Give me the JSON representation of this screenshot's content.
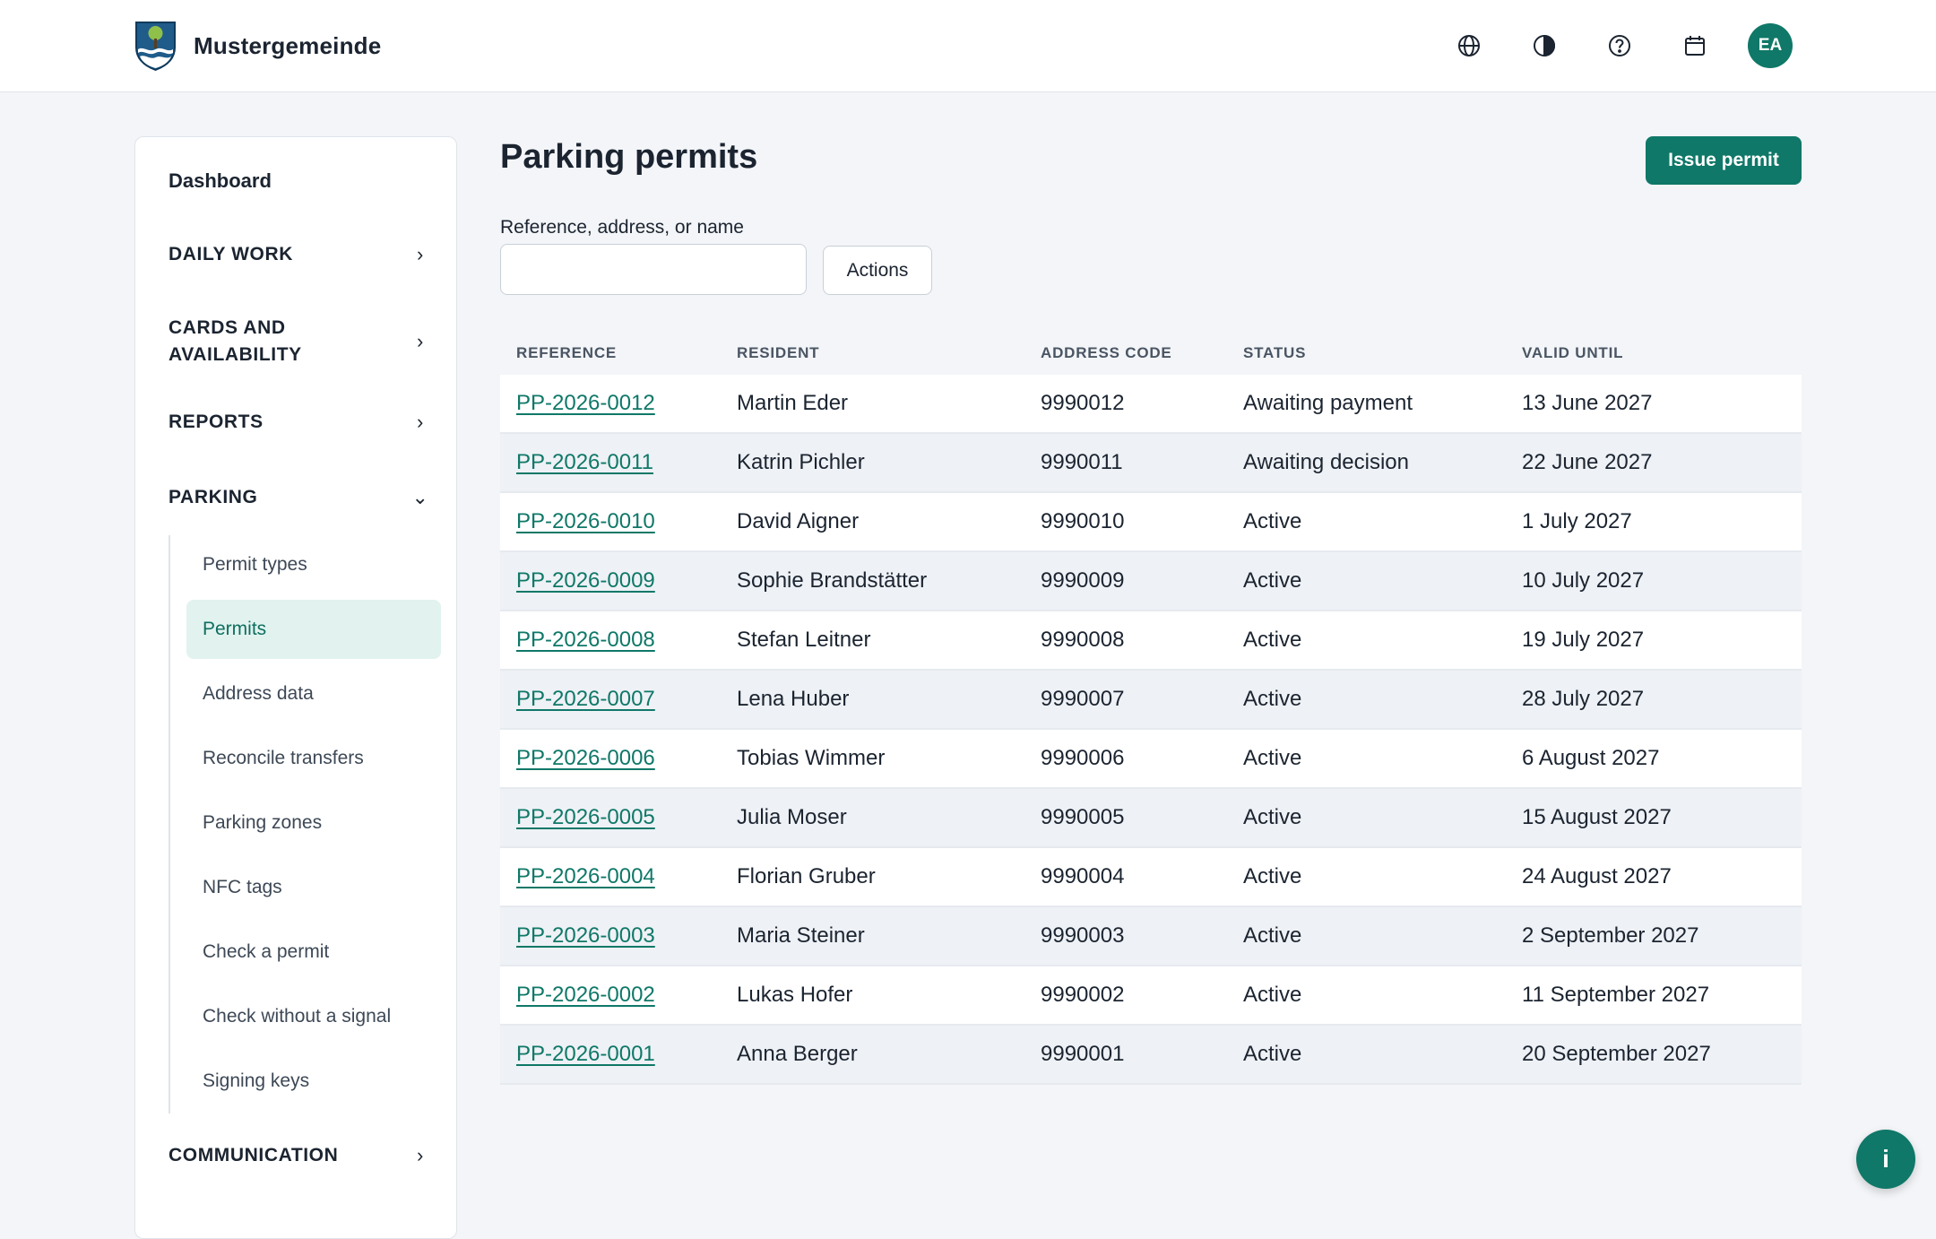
{
  "header": {
    "app_name": "Mustergemeinde",
    "avatar_initials": "EA",
    "icons": [
      "globe-icon",
      "contrast-icon",
      "help-icon",
      "calendar-icon"
    ]
  },
  "sidebar": {
    "dashboard": "Dashboard",
    "sections": [
      {
        "label": "DAILY WORK",
        "expanded": false
      },
      {
        "label": "CARDS AND AVAILABILITY",
        "expanded": false
      },
      {
        "label": "REPORTS",
        "expanded": false
      },
      {
        "label": "PARKING",
        "expanded": true
      },
      {
        "label": "COMMUNICATION",
        "expanded": false
      }
    ],
    "parking_items": [
      {
        "label": "Permit types"
      },
      {
        "label": "Permits",
        "active": true
      },
      {
        "label": "Address data"
      },
      {
        "label": "Reconcile transfers"
      },
      {
        "label": "Parking zones"
      },
      {
        "label": "NFC tags"
      },
      {
        "label": "Check a permit"
      },
      {
        "label": "Check without a signal"
      },
      {
        "label": "Signing keys"
      }
    ]
  },
  "main": {
    "title": "Parking permits",
    "issue_button": "Issue permit",
    "search": {
      "label": "Reference, address, or name",
      "value": "",
      "placeholder": ""
    },
    "actions_button": "Actions",
    "table": {
      "headers": [
        "REFERENCE",
        "RESIDENT",
        "ADDRESS CODE",
        "STATUS",
        "VALID UNTIL"
      ],
      "rows": [
        [
          "PP-2026-0012",
          "Martin Eder",
          "9990012",
          "Awaiting payment",
          "13 June 2027"
        ],
        [
          "PP-2026-0011",
          "Katrin Pichler",
          "9990011",
          "Awaiting decision",
          "22 June 2027"
        ],
        [
          "PP-2026-0010",
          "David Aigner",
          "9990010",
          "Active",
          "1 July 2027"
        ],
        [
          "PP-2026-0009",
          "Sophie Brandstätter",
          "9990009",
          "Active",
          "10 July 2027"
        ],
        [
          "PP-2026-0008",
          "Stefan Leitner",
          "9990008",
          "Active",
          "19 July 2027"
        ],
        [
          "PP-2026-0007",
          "Lena Huber",
          "9990007",
          "Active",
          "28 July 2027"
        ],
        [
          "PP-2026-0006",
          "Tobias Wimmer",
          "9990006",
          "Active",
          "6 August 2027"
        ],
        [
          "PP-2026-0005",
          "Julia Moser",
          "9990005",
          "Active",
          "15 August 2027"
        ],
        [
          "PP-2026-0004",
          "Florian Gruber",
          "9990004",
          "Active",
          "24 August 2027"
        ],
        [
          "PP-2026-0003",
          "Maria Steiner",
          "9990003",
          "Active",
          "2 September 2027"
        ],
        [
          "PP-2026-0002",
          "Lukas Hofer",
          "9990002",
          "Active",
          "11 September 2027"
        ],
        [
          "PP-2026-0001",
          "Anna Berger",
          "9990001",
          "Active",
          "20 September 2027"
        ]
      ]
    }
  },
  "info_button": "i",
  "colors": {
    "accent": "#0f7868",
    "active_bg": "#e2f3ef",
    "row_alt": "#eef1f5"
  }
}
